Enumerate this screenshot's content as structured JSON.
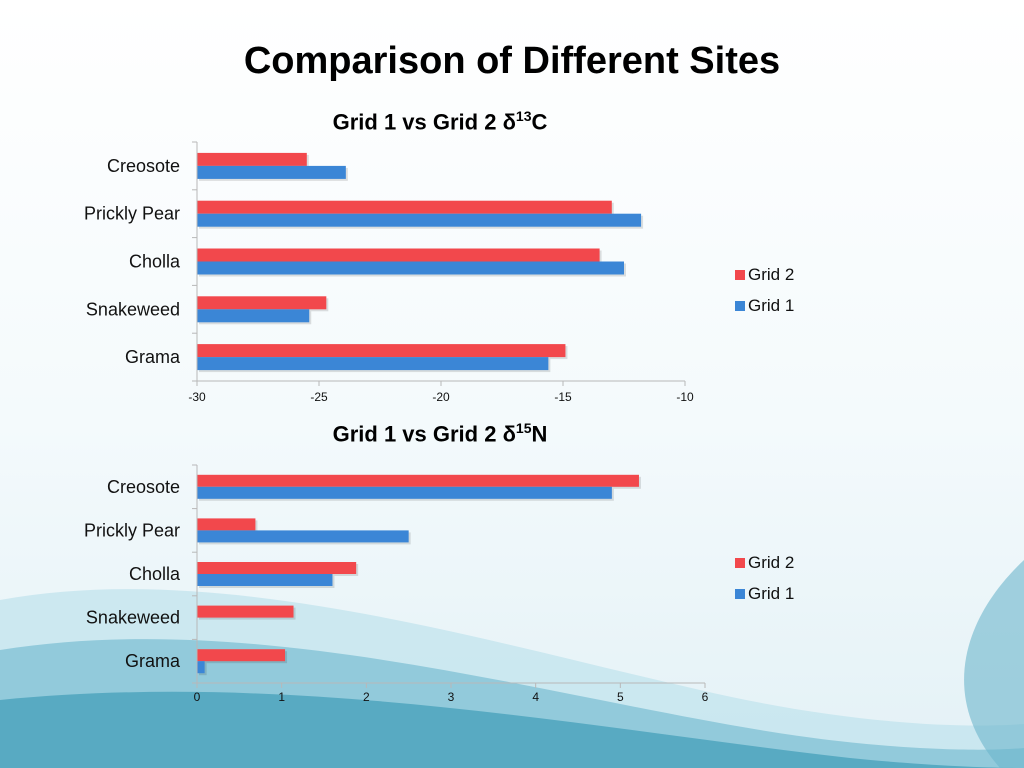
{
  "slide": {
    "title": "Comparison of Different Sites"
  },
  "colors": {
    "grid1": "#3b86d6",
    "grid2": "#f2484c",
    "axis": "#b8b8b8",
    "wave_dark": "#4ea4bd",
    "wave_light": "#9fd0df"
  },
  "chart_data": [
    {
      "type": "bar",
      "orientation": "horizontal",
      "title_main": "Grid 1 vs Grid 2 ",
      "title_symbol": "δ",
      "title_sup": "13",
      "title_suffix": "C",
      "categories": [
        "Creosote",
        "Prickly Pear",
        "Cholla",
        "Snakeweed",
        "Grama"
      ],
      "series": [
        {
          "name": "Grid 2",
          "color": "#f2484c",
          "values": [
            -25.5,
            -13.0,
            -13.5,
            -24.7,
            -14.9
          ]
        },
        {
          "name": "Grid 1",
          "color": "#3b86d6",
          "values": [
            -23.9,
            -11.8,
            -12.5,
            -25.4,
            -15.6
          ]
        }
      ],
      "xlim": [
        -30,
        -10
      ],
      "xticks": [
        "-30",
        "-25",
        "-20",
        "-15",
        "-10"
      ],
      "legend_position": "right",
      "grid": false
    },
    {
      "type": "bar",
      "orientation": "horizontal",
      "title_main": "Grid 1 vs Grid 2 ",
      "title_symbol": "δ",
      "title_sup": "15",
      "title_suffix": "N",
      "categories": [
        "Creosote",
        "Prickly Pear",
        "Cholla",
        "Snakeweed",
        "Grama"
      ],
      "series": [
        {
          "name": "Grid 2",
          "color": "#f2484c",
          "values": [
            5.22,
            0.69,
            1.88,
            1.14,
            1.04
          ]
        },
        {
          "name": "Grid 1",
          "color": "#3b86d6",
          "values": [
            4.9,
            2.5,
            1.6,
            0.0,
            0.09
          ]
        }
      ],
      "xlim": [
        0,
        6
      ],
      "xticks": [
        "0",
        "1",
        "2",
        "3",
        "4",
        "5",
        "6"
      ],
      "legend_position": "right",
      "grid": false
    }
  ]
}
